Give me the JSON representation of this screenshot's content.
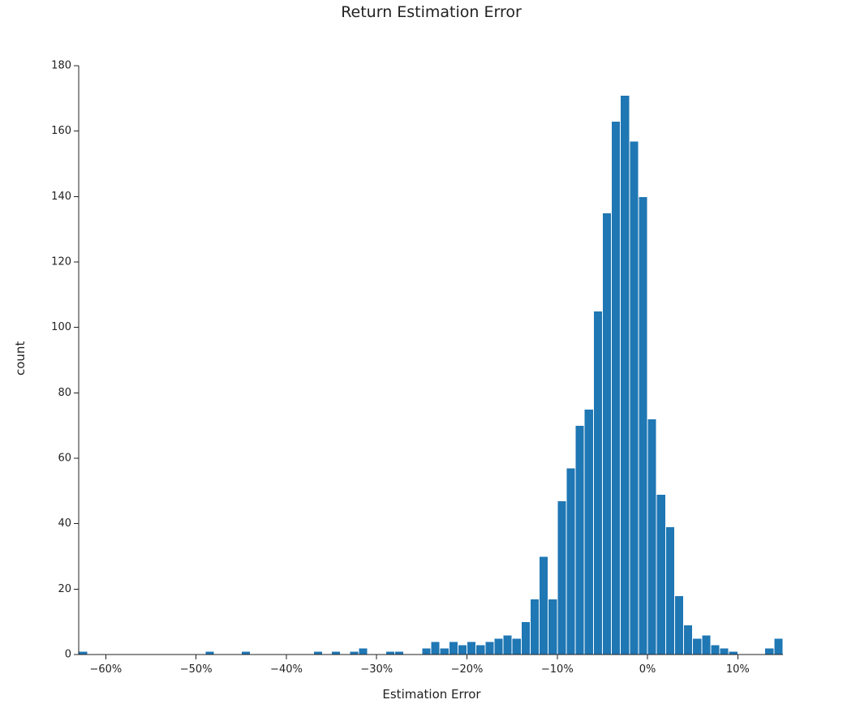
{
  "colors": {
    "bar_fill": "#1f77b4",
    "background": "#ffffff",
    "text": "#222222"
  },
  "chart_data": {
    "type": "bar",
    "title": "Return Estimation Error",
    "xlabel": "Estimation Error",
    "ylabel": "count",
    "grid": false,
    "xlim": [
      -0.63,
      0.15
    ],
    "ylim": [
      0,
      180
    ],
    "bin_width": 0.01,
    "x_ticks": [
      {
        "value": -0.6,
        "label": "−60%"
      },
      {
        "value": -0.5,
        "label": "−50%"
      },
      {
        "value": -0.4,
        "label": "−40%"
      },
      {
        "value": -0.3,
        "label": "−30%"
      },
      {
        "value": -0.2,
        "label": "−20%"
      },
      {
        "value": -0.1,
        "label": "−10%"
      },
      {
        "value": 0.0,
        "label": "0%"
      },
      {
        "value": 0.1,
        "label": "10%"
      }
    ],
    "y_ticks": [
      {
        "value": 0,
        "label": "0"
      },
      {
        "value": 20,
        "label": "20"
      },
      {
        "value": 40,
        "label": "40"
      },
      {
        "value": 60,
        "label": "60"
      },
      {
        "value": 80,
        "label": "80"
      },
      {
        "value": 100,
        "label": "100"
      },
      {
        "value": 120,
        "label": "120"
      },
      {
        "value": 140,
        "label": "140"
      },
      {
        "value": 160,
        "label": "160"
      },
      {
        "value": 180,
        "label": "180"
      }
    ],
    "bins": [
      {
        "x0": -0.63,
        "x1": -0.62,
        "count": 1
      },
      {
        "x0": -0.49,
        "x1": -0.48,
        "count": 1
      },
      {
        "x0": -0.45,
        "x1": -0.44,
        "count": 1
      },
      {
        "x0": -0.37,
        "x1": -0.36,
        "count": 1
      },
      {
        "x0": -0.35,
        "x1": -0.34,
        "count": 1
      },
      {
        "x0": -0.33,
        "x1": -0.32,
        "count": 1
      },
      {
        "x0": -0.32,
        "x1": -0.31,
        "count": 2
      },
      {
        "x0": -0.29,
        "x1": -0.28,
        "count": 1
      },
      {
        "x0": -0.28,
        "x1": -0.27,
        "count": 1
      },
      {
        "x0": -0.25,
        "x1": -0.24,
        "count": 2
      },
      {
        "x0": -0.24,
        "x1": -0.23,
        "count": 4
      },
      {
        "x0": -0.23,
        "x1": -0.22,
        "count": 2
      },
      {
        "x0": -0.22,
        "x1": -0.21,
        "count": 4
      },
      {
        "x0": -0.21,
        "x1": -0.2,
        "count": 3
      },
      {
        "x0": -0.2,
        "x1": -0.19,
        "count": 4
      },
      {
        "x0": -0.19,
        "x1": -0.18,
        "count": 3
      },
      {
        "x0": -0.18,
        "x1": -0.17,
        "count": 4
      },
      {
        "x0": -0.17,
        "x1": -0.16,
        "count": 5
      },
      {
        "x0": -0.16,
        "x1": -0.15,
        "count": 6
      },
      {
        "x0": -0.15,
        "x1": -0.14,
        "count": 5
      },
      {
        "x0": -0.14,
        "x1": -0.13,
        "count": 10
      },
      {
        "x0": -0.13,
        "x1": -0.12,
        "count": 17
      },
      {
        "x0": -0.12,
        "x1": -0.11,
        "count": 30
      },
      {
        "x0": -0.11,
        "x1": -0.1,
        "count": 17
      },
      {
        "x0": -0.1,
        "x1": -0.09,
        "count": 47
      },
      {
        "x0": -0.09,
        "x1": -0.08,
        "count": 57
      },
      {
        "x0": -0.08,
        "x1": -0.07,
        "count": 70
      },
      {
        "x0": -0.07,
        "x1": -0.06,
        "count": 75
      },
      {
        "x0": -0.06,
        "x1": -0.05,
        "count": 105
      },
      {
        "x0": -0.05,
        "x1": -0.04,
        "count": 135
      },
      {
        "x0": -0.04,
        "x1": -0.03,
        "count": 163
      },
      {
        "x0": -0.03,
        "x1": -0.02,
        "count": 171
      },
      {
        "x0": -0.02,
        "x1": -0.01,
        "count": 157
      },
      {
        "x0": -0.01,
        "x1": 0.0,
        "count": 140
      },
      {
        "x0": 0.0,
        "x1": 0.01,
        "count": 72
      },
      {
        "x0": 0.01,
        "x1": 0.02,
        "count": 49
      },
      {
        "x0": 0.02,
        "x1": 0.03,
        "count": 39
      },
      {
        "x0": 0.03,
        "x1": 0.04,
        "count": 18
      },
      {
        "x0": 0.04,
        "x1": 0.05,
        "count": 9
      },
      {
        "x0": 0.05,
        "x1": 0.06,
        "count": 5
      },
      {
        "x0": 0.06,
        "x1": 0.07,
        "count": 6
      },
      {
        "x0": 0.07,
        "x1": 0.08,
        "count": 3
      },
      {
        "x0": 0.08,
        "x1": 0.09,
        "count": 2
      },
      {
        "x0": 0.09,
        "x1": 0.1,
        "count": 1
      },
      {
        "x0": 0.13,
        "x1": 0.14,
        "count": 2
      },
      {
        "x0": 0.14,
        "x1": 0.15,
        "count": 5
      }
    ]
  }
}
